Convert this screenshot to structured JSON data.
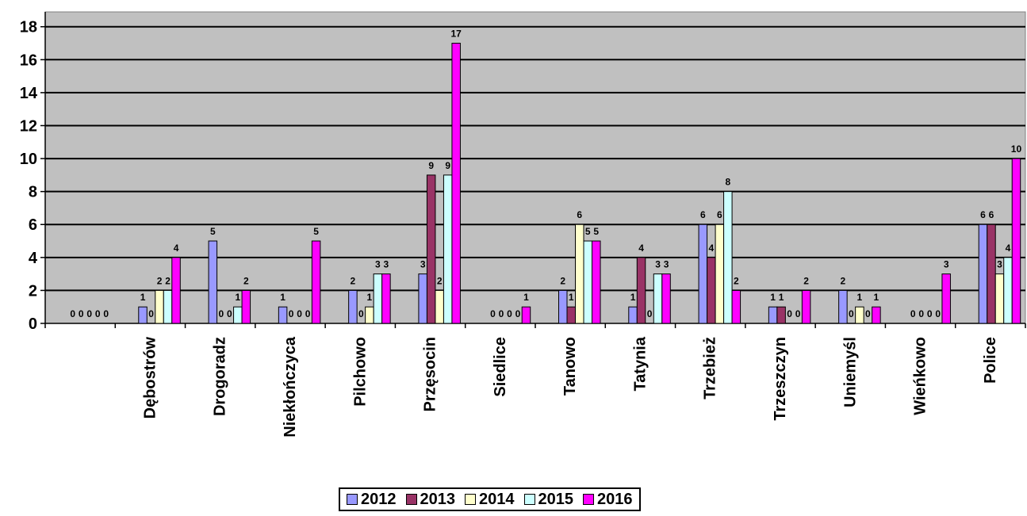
{
  "chart_data": {
    "type": "bar",
    "title": "",
    "xlabel": "",
    "ylabel": "",
    "ylim": [
      0,
      18
    ],
    "yticks": [
      0,
      2,
      4,
      6,
      8,
      10,
      12,
      14,
      16,
      18
    ],
    "grid": true,
    "legend_position": "bottom",
    "plot_background": "#c0c0c0",
    "categories": [
      "",
      "Dębostrów",
      "Drogoradz",
      "Niekłończyca",
      "Pilchowo",
      "Przęsocin",
      "Siedlice",
      "Tanowo",
      "Tatynia",
      "Trzebież",
      "Trzeszczyn",
      "Uniemyśl",
      "Wieńkowo",
      "Police"
    ],
    "series": [
      {
        "name": "2012",
        "color": "#9999ff",
        "values": [
          0,
          1,
          5,
          1,
          2,
          3,
          0,
          2,
          1,
          6,
          1,
          2,
          0,
          6
        ]
      },
      {
        "name": "2013",
        "color": "#993366",
        "values": [
          0,
          0,
          0,
          0,
          0,
          9,
          0,
          1,
          4,
          4,
          1,
          0,
          0,
          6
        ]
      },
      {
        "name": "2014",
        "color": "#ffffcc",
        "values": [
          0,
          2,
          0,
          0,
          1,
          2,
          0,
          6,
          0,
          6,
          0,
          1,
          0,
          3
        ]
      },
      {
        "name": "2015",
        "color": "#ccffff",
        "values": [
          0,
          2,
          1,
          0,
          3,
          9,
          0,
          5,
          3,
          8,
          0,
          0,
          0,
          4
        ]
      },
      {
        "name": "2016",
        "color": "#ff00ff",
        "values": [
          0,
          4,
          2,
          5,
          3,
          17,
          1,
          5,
          3,
          2,
          2,
          1,
          3,
          10
        ]
      }
    ]
  }
}
